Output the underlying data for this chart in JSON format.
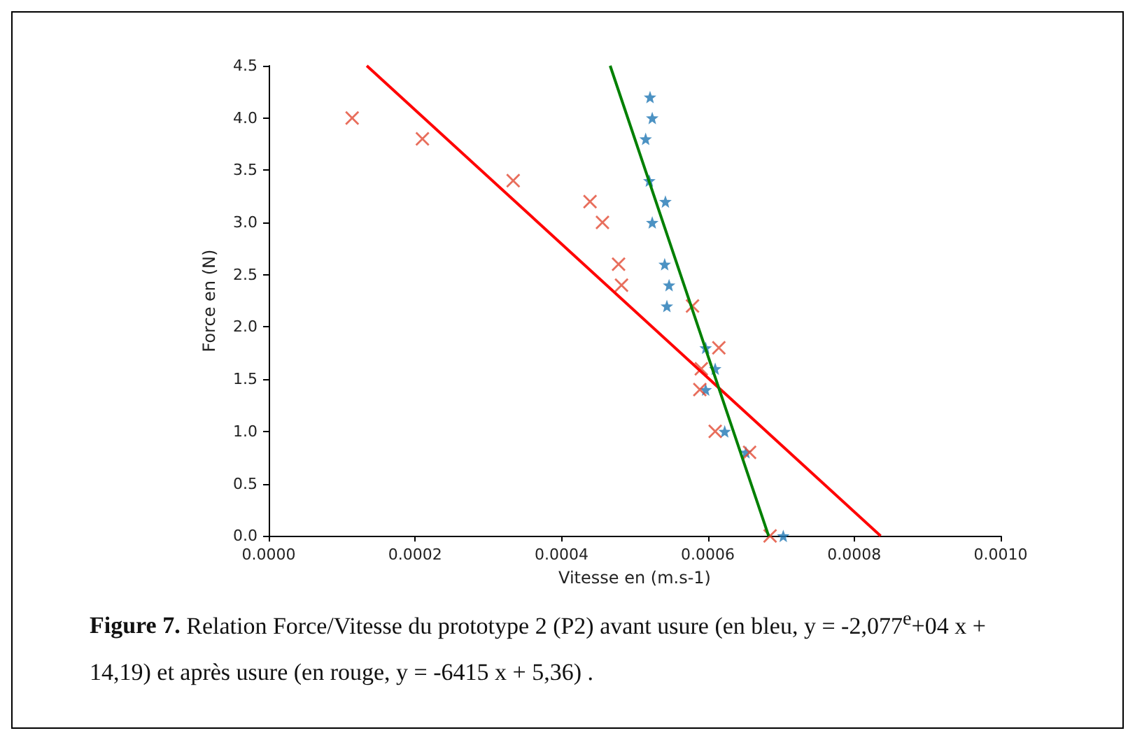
{
  "chart_data": {
    "type": "scatter",
    "xlabel": "Vitesse en (m.s-1)",
    "ylabel": "Force en (N)",
    "xlim": [
      0,
      0.001
    ],
    "ylim": [
      0,
      4.5
    ],
    "xticks": [
      {
        "value": 0,
        "label": "0.0000"
      },
      {
        "value": 0.0002,
        "label": "0.0002"
      },
      {
        "value": 0.0004,
        "label": "0.0004"
      },
      {
        "value": 0.0006,
        "label": "0.0006"
      },
      {
        "value": 0.0008,
        "label": "0.0008"
      },
      {
        "value": 0.001,
        "label": "0.0010"
      }
    ],
    "yticks": [
      {
        "value": 0,
        "label": "0.0"
      },
      {
        "value": 0.5,
        "label": "0.5"
      },
      {
        "value": 1,
        "label": "1.0"
      },
      {
        "value": 1.5,
        "label": "1.5"
      },
      {
        "value": 2,
        "label": "2.0"
      },
      {
        "value": 2.5,
        "label": "2.5"
      },
      {
        "value": 3,
        "label": "3.0"
      },
      {
        "value": 3.5,
        "label": "3.5"
      },
      {
        "value": 4,
        "label": "4.0"
      },
      {
        "value": 4.5,
        "label": "4.5"
      }
    ],
    "grid": false,
    "series": [
      {
        "marker": "star",
        "color": "#1f77b4",
        "x": [
          0.000521,
          0.000524,
          0.000515,
          0.00052,
          0.000542,
          0.000524,
          0.000541,
          0.000547,
          0.000544,
          0.000597,
          0.00061,
          0.000597,
          0.000623,
          0.000652,
          0.000703
        ],
        "values": [
          4.2,
          4.0,
          3.8,
          3.4,
          3.2,
          3.0,
          2.6,
          2.4,
          2.2,
          1.8,
          1.6,
          1.4,
          1.0,
          0.8,
          0.0
        ]
      },
      {
        "marker": "cross",
        "color": "#e24a33",
        "x": [
          0.000114,
          0.00021,
          0.000334,
          0.000439,
          0.000456,
          0.000478,
          0.000482,
          0.000579,
          0.000615,
          0.000591,
          0.000589,
          0.00061,
          0.000657,
          0.000685
        ],
        "values": [
          4.0,
          3.8,
          3.4,
          3.2,
          3.0,
          2.6,
          2.4,
          2.2,
          1.8,
          1.6,
          1.4,
          1.0,
          0.8,
          0.0
        ]
      },
      {
        "type": "line",
        "marker": "none",
        "line_style": "solid",
        "color": "#ff0000",
        "x": [
          0.000134,
          0.000836
        ],
        "values": [
          4.5,
          0
        ]
      },
      {
        "type": "line",
        "marker": "none",
        "line_style": "solid",
        "color": "#008000",
        "x": [
          0.0004665,
          0.000683
        ],
        "values": [
          4.5,
          0
        ]
      }
    ],
    "annotations": [
      "Figure 7.",
      "Relation Force/Vitesse du prototype 2 (P2) avant usure (en bleu, y = -2,077$^{e}$+04 x + 14,19) et après usure (en rouge, y = -6415 x + 5,36) ."
    ]
  }
}
